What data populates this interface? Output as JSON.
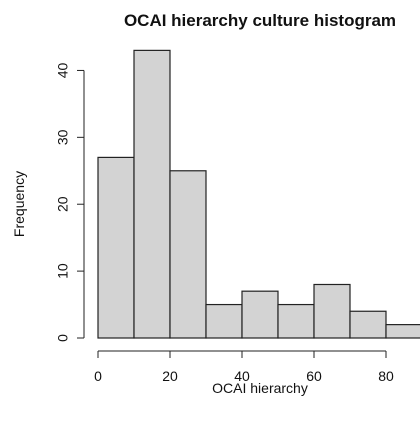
{
  "chart_data": {
    "type": "bar",
    "title": "OCAI hierarchy culture histogram",
    "xlabel": "OCAI hierarchy",
    "ylabel": "Frequency",
    "bins": [
      {
        "from": 0,
        "to": 10,
        "count": 27
      },
      {
        "from": 10,
        "to": 20,
        "count": 43
      },
      {
        "from": 20,
        "to": 30,
        "count": 25
      },
      {
        "from": 30,
        "to": 40,
        "count": 5
      },
      {
        "from": 40,
        "to": 50,
        "count": 7
      },
      {
        "from": 50,
        "to": 60,
        "count": 5
      },
      {
        "from": 60,
        "to": 70,
        "count": 8
      },
      {
        "from": 70,
        "to": 80,
        "count": 4
      },
      {
        "from": 80,
        "to": 90,
        "count": 2
      }
    ],
    "xticks": [
      "0",
      "20",
      "40",
      "60",
      "80"
    ],
    "yticks": [
      "0",
      "10",
      "20",
      "30",
      "40"
    ],
    "xlim": [
      0,
      90
    ],
    "ylim": [
      0,
      45
    ],
    "grid": false,
    "legend": "none",
    "bar_fill": "#d3d3d3",
    "bar_stroke": "#222222"
  }
}
